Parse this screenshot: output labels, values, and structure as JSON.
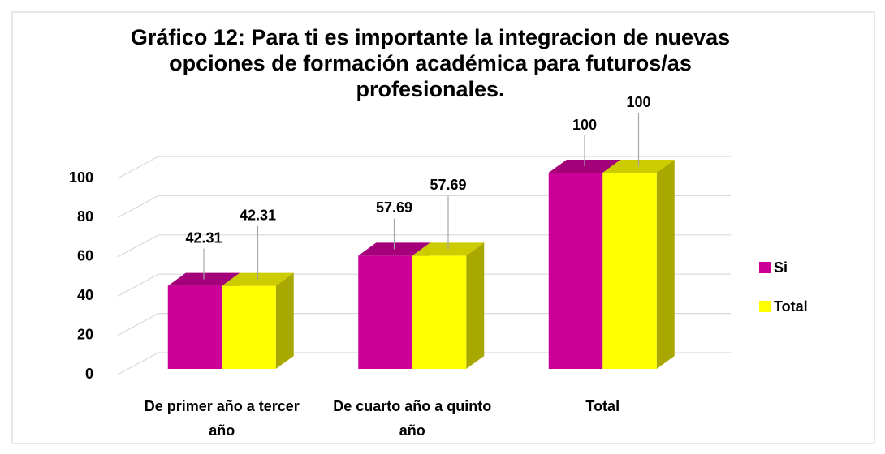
{
  "chart_data": {
    "type": "bar3d",
    "title": "Gráfico 12: Para ti es importante la integracion de nuevas opciones de formación académica para futuros/as profesionales.",
    "categories": [
      "De primer año a tercer año",
      "De cuarto año a quinto año",
      "Total"
    ],
    "series": [
      {
        "name": "Si",
        "color": "#cc0099",
        "values": [
          42.31,
          57.69,
          100
        ]
      },
      {
        "name": "Total",
        "color": "#ffff00",
        "values": [
          42.31,
          57.69,
          100
        ]
      }
    ],
    "ylim": [
      0,
      100
    ],
    "yticks": [
      0,
      20,
      40,
      60,
      80,
      100
    ],
    "grid": true,
    "legend": "right"
  }
}
